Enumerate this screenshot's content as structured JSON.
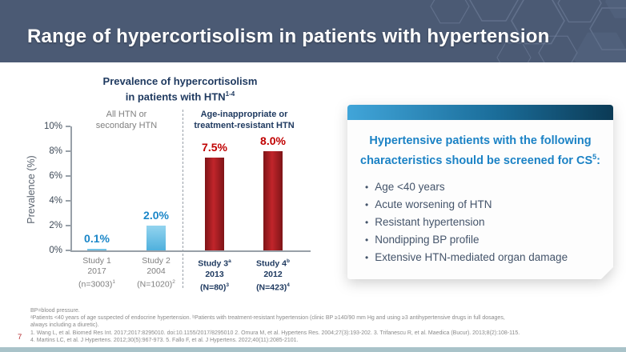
{
  "slide": {
    "title": "Range of hypercortisolism in patients with hypertension",
    "page_number": "7"
  },
  "colors": {
    "header_bg": "#4b5a74",
    "navy": "#1f3a60",
    "gray_label": "#7f7f7f",
    "blue_value": "#1a86c8",
    "red_value": "#c00000",
    "bar_blue_top": "#93d4ef",
    "bar_blue_bottom": "#4fb0dd",
    "bar_red_light": "#c1252b",
    "bar_red_dark": "#7e1417",
    "axis": "#98a0a8",
    "tick_label": "#3e4a58",
    "callout_heading": "#1b82c5",
    "callout_text": "#44546a",
    "footer_bar": "#a9c3c9",
    "page_number_red": "#b3282d"
  },
  "chart": {
    "title_line1": "Prevalence of hypercortisolism",
    "title_line2": "in patients with HTN",
    "title_sup": "1-4"
  },
  "chart_data": {
    "type": "bar",
    "title": "Prevalence of hypercortisolism in patients with HTN¹⁻⁴",
    "xlabel": "",
    "ylabel": "Prevalence (%)",
    "ylim": [
      0,
      10
    ],
    "ytick_step": 2,
    "yticks": [
      "0%",
      "2%",
      "4%",
      "6%",
      "8%",
      "10%"
    ],
    "grid": false,
    "legend": "none",
    "group_labels": [
      {
        "line1": "All HTN or",
        "line2": "secondary HTN",
        "style": "gray"
      },
      {
        "line1": "Age-inappropriate or",
        "line2": "treatment-resistant HTN",
        "style": "navy"
      }
    ],
    "categories": [
      {
        "study": "Study 1",
        "study_sup": "",
        "year": "2017",
        "n": "(n=3003)",
        "n_sup": "1",
        "group": 0
      },
      {
        "study": "Study 2",
        "study_sup": "",
        "year": "2004",
        "n": "(N=1020)",
        "n_sup": "2",
        "group": 0
      },
      {
        "study": "Study 3",
        "study_sup": "a",
        "year": "2013",
        "n": "(N=80)",
        "n_sup": "3",
        "group": 1
      },
      {
        "study": "Study 4",
        "study_sup": "b",
        "year": "2012",
        "n": "(N=423)",
        "n_sup": "4",
        "group": 1
      }
    ],
    "values": [
      0.1,
      2.0,
      7.5,
      8.0
    ],
    "value_labels": [
      "0.1%",
      "2.0%",
      "7.5%",
      "8.0%"
    ]
  },
  "callout": {
    "heading": "Hypertensive patients with the following characteristics should be screened for CS",
    "heading_sup": "5",
    "heading_suffix": ":",
    "bullets": [
      "Age <40 years",
      "Acute worsening of HTN",
      "Resistant hypertension",
      "Nondipping BP profile",
      "Extensive HTN-mediated organ damage"
    ]
  },
  "footnotes": [
    "BP=blood pressure.",
    "ᵃPatients <40 years of age suspected of endocrine hypertension. ᵇPatients with treatment-resistant hypertension (clinic BP ≥140/90 mm Hg and using ≥3 antihypertensive drugs in full dosages,",
    "always including a diuretic).",
    "1. Wang L, et al. Biomed Res Int. 2017;2017:8295010. doi:10.1155/2017/8295010 2. Omura M, et al. Hypertens Res. 2004;27(3):193-202. 3. Trifanescu R, et al. Maedica (Bucur). 2013;8(2):108-115.",
    "4. Martins LC, et al. J Hypertens. 2012;30(5):967-973. 5. Fallo F, et al. J Hypertens. 2022;40(11):2085-2101."
  ]
}
